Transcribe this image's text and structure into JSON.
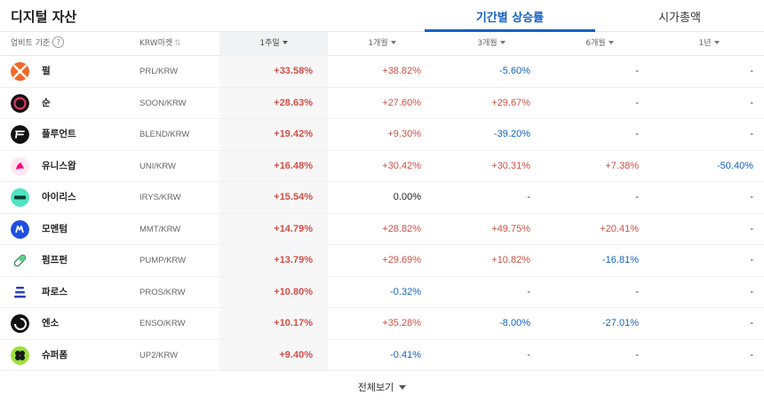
{
  "header": {
    "title": "디지털 자산",
    "tabs": [
      {
        "label": "기간별 상승률",
        "active": true
      },
      {
        "label": "시가총액",
        "active": false
      }
    ]
  },
  "columns": {
    "source": "업비트 기준",
    "market": "KRW마켓",
    "periods": [
      "1주일",
      "1개월",
      "3개월",
      "6개월",
      "1년"
    ],
    "selected_period": "1주일"
  },
  "colors": {
    "accent": "#1261c4",
    "up": "#d24f45",
    "down": "#1261c4"
  },
  "rows": [
    {
      "name": "펄",
      "market": "PRL/KRW",
      "icon": "prl-logo-icon",
      "w1": "+33.58%",
      "m1": "+38.82%",
      "m3": "-5.60%",
      "m6": "-",
      "y1": "-"
    },
    {
      "name": "순",
      "market": "SOON/KRW",
      "icon": "soon-logo-icon",
      "w1": "+28.63%",
      "m1": "+27.60%",
      "m3": "+29.67%",
      "m6": "-",
      "y1": "-"
    },
    {
      "name": "플루언트",
      "market": "BLEND/KRW",
      "icon": "blend-logo-icon",
      "w1": "+19.42%",
      "m1": "+9.30%",
      "m3": "-39.20%",
      "m6": "-",
      "y1": "-"
    },
    {
      "name": "유니스왑",
      "market": "UNI/KRW",
      "icon": "uni-logo-icon",
      "w1": "+16.48%",
      "m1": "+30.42%",
      "m3": "+30.31%",
      "m6": "+7.38%",
      "y1": "-50.40%"
    },
    {
      "name": "아이리스",
      "market": "IRYS/KRW",
      "icon": "irys-logo-icon",
      "w1": "+15.54%",
      "m1": "0.00%",
      "m3": "-",
      "m6": "-",
      "y1": "-"
    },
    {
      "name": "모멘텀",
      "market": "MMT/KRW",
      "icon": "mmt-logo-icon",
      "w1": "+14.79%",
      "m1": "+28.82%",
      "m3": "+49.75%",
      "m6": "+20.41%",
      "y1": "-"
    },
    {
      "name": "펌프펀",
      "market": "PUMP/KRW",
      "icon": "pump-logo-icon",
      "w1": "+13.79%",
      "m1": "+29.69%",
      "m3": "+10.82%",
      "m6": "-16.81%",
      "y1": "-"
    },
    {
      "name": "파로스",
      "market": "PROS/KRW",
      "icon": "pros-logo-icon",
      "w1": "+10.80%",
      "m1": "-0.32%",
      "m3": "-",
      "m6": "-",
      "y1": "-"
    },
    {
      "name": "엔소",
      "market": "ENSO/KRW",
      "icon": "enso-logo-icon",
      "w1": "+10.17%",
      "m1": "+35.28%",
      "m3": "-8.00%",
      "m6": "-27.01%",
      "y1": "-"
    },
    {
      "name": "슈퍼폼",
      "market": "UP2/KRW",
      "icon": "up2-logo-icon",
      "w1": "+9.40%",
      "m1": "-0.41%",
      "m3": "-",
      "m6": "-",
      "y1": "-"
    }
  ],
  "footer": {
    "view_all": "전체보기"
  }
}
